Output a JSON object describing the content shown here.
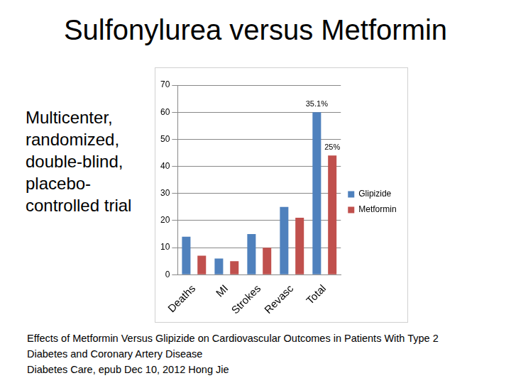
{
  "slide": {
    "title": "Sulfonylurea versus Metformin",
    "side_text": [
      "Multicenter,",
      "randomized,",
      "double-blind,",
      "placebo-",
      "controlled trial"
    ],
    "caption": [
      "Effects of Metformin Versus Glipizide on Cardiovascular Outcomes in Patients With Type 2",
      "Diabetes and Coronary Artery Disease",
      "Diabetes Care, epub Dec 10, 2012 Hong Jie"
    ]
  },
  "chart_data": {
    "type": "bar",
    "categories": [
      "Deaths",
      "MI",
      "Strokes",
      "Revasc",
      "Total"
    ],
    "series": [
      {
        "name": "Glipizide",
        "color": "#4f81bd",
        "values": [
          14,
          6,
          15,
          25,
          60
        ]
      },
      {
        "name": "Metformin",
        "color": "#c0504d",
        "values": [
          7,
          5,
          10,
          21,
          44
        ]
      }
    ],
    "annotations": [
      {
        "text": "35.1%",
        "category": "Total",
        "series": "Glipizide"
      },
      {
        "text": "25%",
        "category": "Total",
        "series": "Metformin"
      }
    ],
    "ylim": [
      0,
      70
    ],
    "yticks": [
      0,
      10,
      20,
      30,
      40,
      50,
      60,
      70
    ],
    "grid": true,
    "legend": "right"
  }
}
